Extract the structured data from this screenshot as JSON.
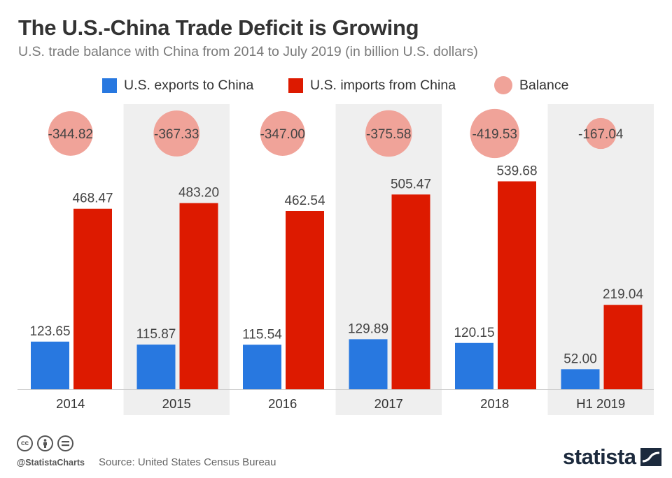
{
  "header": {
    "title": "The U.S.-China Trade Deficit is Growing",
    "subtitle": "U.S. trade balance with China from 2014 to July 2019 (in billion U.S. dollars)"
  },
  "legend": {
    "exports": "U.S. exports to China",
    "imports": "U.S. imports from China",
    "balance": "Balance"
  },
  "colors": {
    "exports": "#2878e0",
    "imports": "#dd1a00",
    "balance": "#f0a399",
    "band": "#efefef"
  },
  "chart_data": {
    "type": "bar",
    "categories": [
      "2014",
      "2015",
      "2016",
      "2017",
      "2018",
      "H1 2019"
    ],
    "series": [
      {
        "name": "U.S. exports to China",
        "values": [
          123.65,
          115.87,
          115.54,
          129.89,
          120.15,
          52.0
        ],
        "labels": [
          "123.65",
          "115.87",
          "115.54",
          "129.89",
          "120.15",
          "52.00"
        ]
      },
      {
        "name": "U.S. imports from China",
        "values": [
          468.47,
          483.2,
          462.54,
          505.47,
          539.68,
          219.04
        ],
        "labels": [
          "468.47",
          "483.20",
          "462.54",
          "505.47",
          "539.68",
          "219.04"
        ]
      },
      {
        "name": "Balance",
        "values": [
          -344.82,
          -367.33,
          -347.0,
          -375.58,
          -419.53,
          -167.04
        ],
        "labels": [
          "-344.82",
          "-367.33",
          "-347.00",
          "-375.58",
          "-419.53",
          "-167.04"
        ]
      }
    ],
    "ylim": [
      0,
      600
    ],
    "grid": false,
    "legend_position": "top"
  },
  "footer": {
    "cc_icons": [
      "cc-icon",
      "attribution-icon",
      "no-derivatives-icon"
    ],
    "handle": "@StatistaCharts",
    "source": "Source: United States Census Bureau",
    "logo": "statista"
  }
}
